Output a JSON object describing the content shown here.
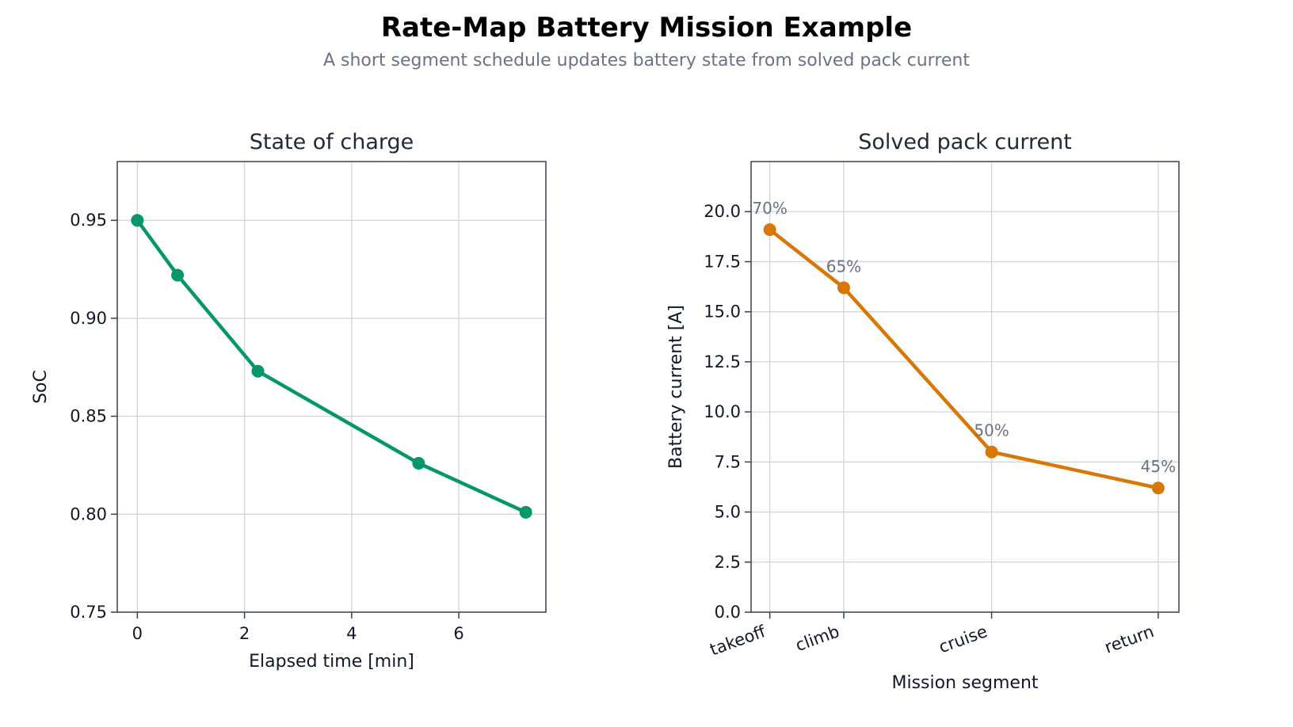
{
  "figure": {
    "title": "Rate-Map Battery Mission Example",
    "subtitle": "A short segment schedule updates battery state from solved pack current"
  },
  "chart_data": [
    {
      "type": "line",
      "title": "State of charge",
      "xlabel": "Elapsed time [min]",
      "ylabel": "SoC",
      "x": [
        0,
        0.75,
        2.25,
        5.25,
        7.25
      ],
      "y": [
        0.95,
        0.922,
        0.873,
        0.826,
        0.801
      ],
      "xlim": [
        -0.375,
        7.625
      ],
      "ylim": [
        0.75,
        0.98
      ],
      "xticks": [
        0,
        2,
        4,
        6
      ],
      "yticks": [
        0.75,
        0.8,
        0.85,
        0.9,
        0.95
      ],
      "ytick_labels": [
        "0.75",
        "0.80",
        "0.85",
        "0.90",
        "0.95"
      ],
      "color": "#059669",
      "grid": true
    },
    {
      "type": "line",
      "title": "Solved pack current",
      "xlabel": "Mission segment",
      "ylabel": "Battery current [A]",
      "categories": [
        "takeoff",
        "climb",
        "cruise",
        "return"
      ],
      "x": [
        0,
        0.75,
        2.25,
        3.94
      ],
      "y": [
        19.1,
        16.2,
        8.0,
        6.2
      ],
      "point_labels": [
        "70%",
        "65%",
        "50%",
        "45%"
      ],
      "xlim": [
        -0.19,
        4.15
      ],
      "ylim": [
        0,
        22.5
      ],
      "yticks": [
        0,
        2.5,
        5,
        7.5,
        10,
        12.5,
        15,
        17.5,
        20
      ],
      "ytick_labels": [
        "0.0",
        "2.5",
        "5.0",
        "7.5",
        "10.0",
        "12.5",
        "15.0",
        "17.5",
        "20.0"
      ],
      "color": "#d97706",
      "grid": true
    }
  ]
}
